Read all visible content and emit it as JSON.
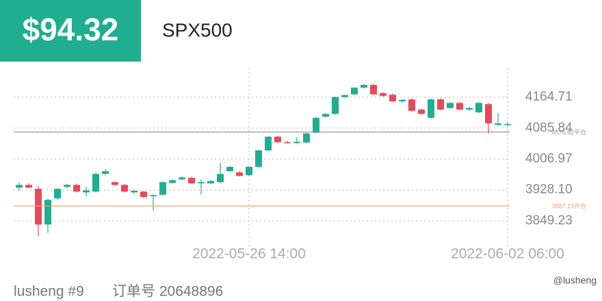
{
  "header": {
    "price": "$94.32",
    "symbol": "SPX500"
  },
  "chart_data": {
    "type": "candlestick",
    "categories": [
      null,
      null,
      null,
      null,
      null,
      null,
      null,
      null,
      null,
      null,
      null,
      null,
      null,
      null,
      null,
      null,
      null,
      null,
      null,
      null,
      null,
      null,
      null,
      null,
      "2022-05-26 14:00",
      null,
      null,
      null,
      null,
      null,
      null,
      null,
      null,
      null,
      null,
      null,
      null,
      null,
      null,
      null,
      null,
      null,
      null,
      null,
      null,
      null,
      null,
      null,
      null,
      null,
      null,
      "2022-06-02 06:00"
    ],
    "open": [
      3934,
      3941,
      3931,
      3840,
      3907,
      3936,
      3941,
      3922,
      3924,
      3969,
      3948,
      3941,
      3922,
      3924,
      3912,
      3916,
      3946,
      3955,
      3959,
      3945,
      3945,
      3948,
      3976,
      3973,
      3966,
      3987,
      4029,
      4064,
      4050,
      4048,
      4049,
      4074,
      4115,
      4122,
      4165,
      4172,
      4189,
      4196,
      4175,
      4171,
      4154,
      4159,
      4133,
      4112,
      4159,
      4137,
      4150,
      4133,
      4126,
      4147,
      4094,
      4094
    ],
    "high": [
      3948,
      3945,
      3938,
      3906,
      3933,
      3944,
      3944,
      3937,
      3972,
      3981,
      3950,
      3943,
      3928,
      3926,
      3917,
      3950,
      3955,
      3963,
      3962,
      3955,
      3953,
      3997,
      3990,
      3976,
      3989,
      4030,
      4065,
      4066,
      4053,
      4063,
      4074,
      4114,
      4124,
      4166,
      4172,
      4190,
      4198,
      4198,
      4178,
      4174,
      4160,
      4162,
      4136,
      4161,
      4162,
      4152,
      4153,
      4140,
      4152,
      4150,
      4125,
      4100
    ],
    "low": [
      3927,
      3933,
      3810,
      3819,
      3903,
      3932,
      3922,
      3912,
      3922,
      3965,
      3939,
      3922,
      3919,
      3908,
      3875,
      3913,
      3944,
      3953,
      3944,
      3917,
      3943,
      3946,
      3974,
      3962,
      3964,
      3985,
      4027,
      4048,
      4047,
      4045,
      4047,
      4072,
      4113,
      4120,
      4163,
      4170,
      4187,
      4170,
      4166,
      4152,
      4150,
      4128,
      4120,
      4110,
      4132,
      4135,
      4132,
      4130,
      4124,
      4072,
      4092,
      4090
    ],
    "close": [
      3941,
      3934,
      3840,
      3903,
      3931,
      3941,
      3924,
      3927,
      3969,
      3976,
      3941,
      3924,
      3926,
      3910,
      3915,
      3948,
      3953,
      3960,
      3945,
      3948,
      3951,
      3969,
      3987,
      3964,
      3987,
      4029,
      4064,
      4050,
      4048,
      4051,
      4072,
      4112,
      4122,
      4165,
      4170,
      4189,
      4196,
      4172,
      4168,
      4154,
      4158,
      4130,
      4122,
      4159,
      4133,
      4150,
      4133,
      4137,
      4150,
      4098,
      4098,
      4096
    ],
    "up_color": "#1fae8f",
    "down_color": "#e8485c",
    "ylim": [
      3802,
      4238
    ],
    "yticks": [
      {
        "value": 3849.23,
        "label": "3849.23"
      },
      {
        "value": 3928.1,
        "label": "3928.10"
      },
      4006.97,
      4085.84,
      4164.71
    ],
    "grid": true,
    "lines": [
      {
        "value": 4075.82,
        "label": "4075.82平仓",
        "color": "#9a9a9a"
      },
      {
        "value": 3887.19,
        "label": "3887.19开仓",
        "color": "#f0a070"
      }
    ]
  },
  "footer": {
    "account": "lusheng #9",
    "order": "订单号 20648896",
    "watermark": "@lusheng"
  }
}
